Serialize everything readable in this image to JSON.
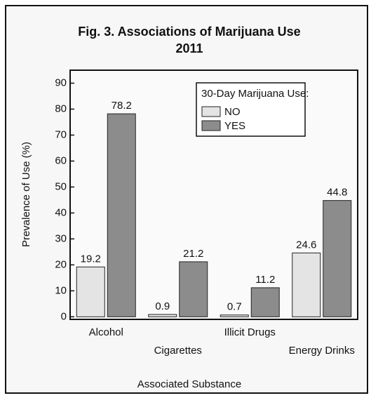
{
  "chart_data": {
    "type": "bar",
    "title": "Fig. 3. Associations of Marijuana Use",
    "subtitle": "2011",
    "x_label": "Associated Substance",
    "y_label": "Prevalence of Use (%)",
    "categories": [
      "Alcohol",
      "Cigarettes",
      "Illicit Drugs",
      "Energy Drinks"
    ],
    "legend_title": "30-Day Marijuana Use:",
    "legend": "upper right",
    "series": [
      {
        "name": "NO",
        "color": "#e4e4e4",
        "values": [
          19.2,
          0.9,
          0.7,
          24.6
        ]
      },
      {
        "name": "YES",
        "color": "#8c8c8c",
        "values": [
          78.2,
          21.2,
          11.2,
          44.8
        ]
      }
    ],
    "ylim": [
      -1,
      95
    ],
    "yticks": [
      0,
      10,
      20,
      30,
      40,
      50,
      60,
      70,
      80,
      90
    ]
  }
}
